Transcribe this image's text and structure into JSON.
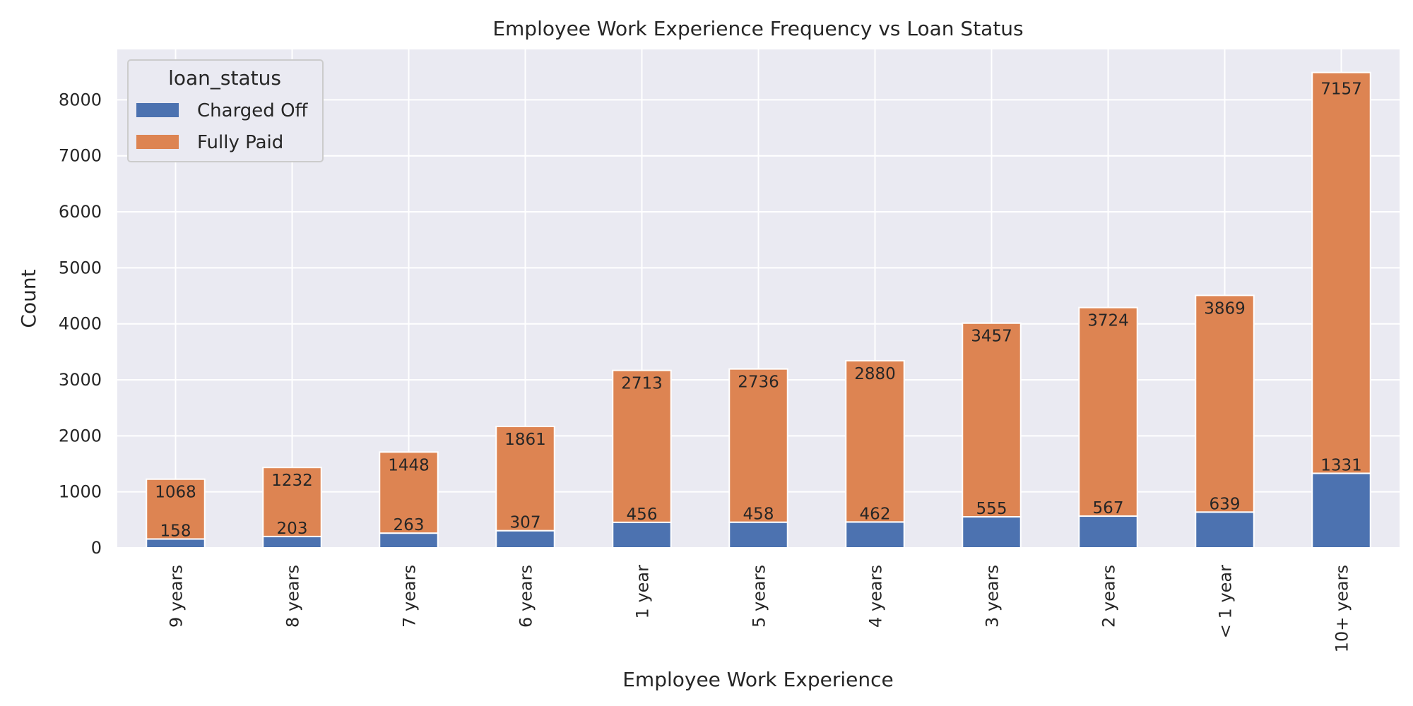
{
  "chart_data": {
    "type": "bar",
    "stacked": true,
    "title": "Employee Work Experience Frequency vs Loan Status",
    "xlabel": "Employee Work Experience",
    "ylabel": "Count",
    "categories": [
      "9 years",
      "8 years",
      "7 years",
      "6 years",
      "1 year",
      "5 years",
      "4 years",
      "3 years",
      "2 years",
      "< 1 year",
      "10+ years"
    ],
    "series": [
      {
        "name": "Charged Off",
        "color": "#4c72b0",
        "values": [
          158,
          203,
          263,
          307,
          456,
          458,
          462,
          555,
          567,
          639,
          1331
        ]
      },
      {
        "name": "Fully Paid",
        "color": "#dd8452",
        "values": [
          1068,
          1232,
          1448,
          1861,
          2713,
          2736,
          2880,
          3457,
          3724,
          3869,
          7157
        ]
      }
    ],
    "yticks": [
      0,
      1000,
      2000,
      3000,
      4000,
      5000,
      6000,
      7000,
      8000
    ],
    "ylim": [
      0,
      8900
    ],
    "legend": {
      "title": "loan_status",
      "position": "upper-left"
    },
    "grid": true,
    "colors": {
      "background": "#eaeaf2",
      "grid": "#ffffff"
    }
  }
}
